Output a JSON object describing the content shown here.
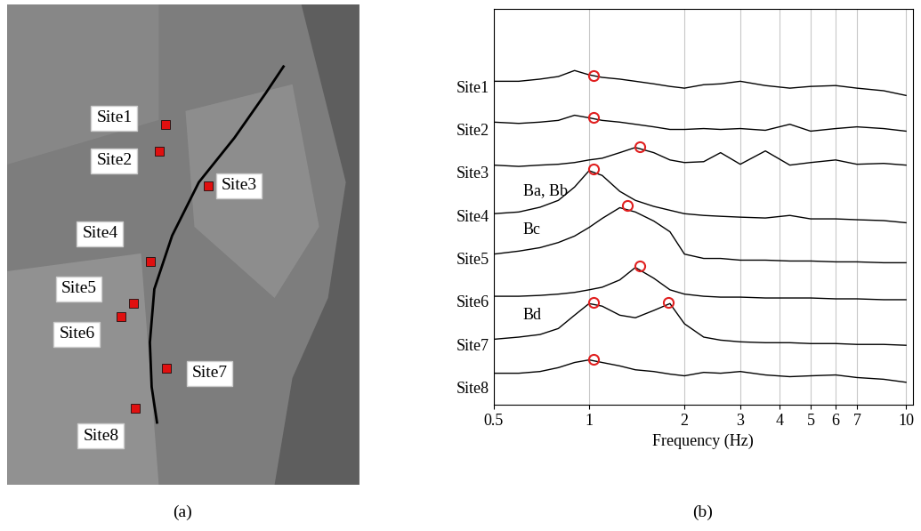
{
  "figure": {
    "panel_labels": [
      "(a)",
      "(b)"
    ]
  },
  "map": {
    "sites": [
      "Site1",
      "Site2",
      "Site3",
      "Site4",
      "Site5",
      "Site6",
      "Site7",
      "Site8"
    ]
  },
  "chart_data": {
    "type": "line",
    "xlabel": "Frequency (Hz)",
    "log": "x",
    "grid": true,
    "xlim": [
      0.5,
      10.5
    ],
    "xticks": [
      0.5,
      1,
      2,
      3,
      4,
      5,
      6,
      7,
      10
    ],
    "ylim": [
      0.6,
      9.8
    ],
    "yticks": [
      {
        "value": 8,
        "label": "Site1"
      },
      {
        "value": 7,
        "label": "Site2"
      },
      {
        "value": 6,
        "label": "Site3"
      },
      {
        "value": 5,
        "label": "Site4"
      },
      {
        "value": 4,
        "label": "Site5"
      },
      {
        "value": 3,
        "label": "Site6"
      },
      {
        "value": 2,
        "label": "Site7"
      },
      {
        "value": 1,
        "label": "Site8"
      }
    ],
    "x": [
      0.5,
      0.6,
      0.7,
      0.8,
      0.9,
      1.0,
      1.1,
      1.25,
      1.4,
      1.6,
      1.8,
      2.0,
      2.3,
      2.6,
      3.0,
      3.6,
      4.3,
      5,
      6,
      7,
      8.5,
      10
    ],
    "series": [
      {
        "name": "Site1",
        "color": "#000000",
        "values": [
          8.12,
          8.12,
          8.17,
          8.23,
          8.37,
          8.27,
          8.21,
          8.17,
          8.12,
          8.06,
          8.0,
          7.96,
          8.04,
          8.06,
          8.12,
          8.02,
          7.96,
          8.0,
          8.02,
          7.96,
          7.9,
          7.79
        ],
        "peaks": [
          {
            "x": 1.03,
            "y": 8.25
          }
        ]
      },
      {
        "name": "Site2",
        "color": "#000000",
        "values": [
          7.17,
          7.14,
          7.17,
          7.21,
          7.33,
          7.27,
          7.21,
          7.17,
          7.12,
          7.06,
          7.0,
          7.0,
          7.02,
          7.0,
          7.02,
          6.98,
          7.12,
          6.96,
          7.02,
          7.06,
          7.02,
          6.96
        ],
        "peaks": [
          {
            "x": 1.03,
            "y": 7.27
          }
        ]
      },
      {
        "name": "Site3",
        "color": "#000000",
        "values": [
          6.17,
          6.14,
          6.17,
          6.19,
          6.23,
          6.29,
          6.33,
          6.46,
          6.58,
          6.46,
          6.29,
          6.23,
          6.25,
          6.46,
          6.19,
          6.5,
          6.17,
          6.23,
          6.29,
          6.19,
          6.21,
          6.17
        ],
        "peaks": [
          {
            "x": 1.45,
            "y": 6.6
          }
        ]
      },
      {
        "name": "Site4",
        "color": "#000000",
        "values": [
          5.04,
          5.08,
          5.19,
          5.35,
          5.66,
          6.04,
          5.93,
          5.56,
          5.35,
          5.21,
          5.12,
          5.04,
          5.0,
          4.98,
          4.96,
          4.94,
          5.0,
          4.92,
          4.92,
          4.9,
          4.88,
          4.83
        ],
        "peaks": [
          {
            "x": 1.03,
            "y": 6.08
          }
        ]
      },
      {
        "name": "Site5",
        "color": "#000000",
        "values": [
          4.1,
          4.17,
          4.25,
          4.37,
          4.52,
          4.72,
          4.93,
          5.18,
          5.08,
          4.87,
          4.62,
          4.1,
          4.0,
          4.0,
          3.96,
          3.96,
          3.94,
          3.94,
          3.92,
          3.92,
          3.9,
          3.9
        ],
        "peaks": [
          {
            "x": 1.32,
            "y": 5.24
          }
        ]
      },
      {
        "name": "Site6",
        "color": "#000000",
        "values": [
          3.12,
          3.12,
          3.14,
          3.17,
          3.21,
          3.27,
          3.33,
          3.5,
          3.79,
          3.54,
          3.27,
          3.17,
          3.12,
          3.1,
          3.1,
          3.08,
          3.08,
          3.08,
          3.06,
          3.06,
          3.04,
          3.04
        ],
        "peaks": [
          {
            "x": 1.45,
            "y": 3.83
          }
        ]
      },
      {
        "name": "Site7",
        "color": "#000000",
        "values": [
          2.12,
          2.17,
          2.23,
          2.37,
          2.68,
          2.95,
          2.89,
          2.68,
          2.62,
          2.79,
          2.95,
          2.48,
          2.17,
          2.1,
          2.06,
          2.04,
          2.04,
          2.02,
          2.02,
          2.0,
          2.0,
          1.98
        ],
        "peaks": [
          {
            "x": 1.03,
            "y": 2.97
          },
          {
            "x": 1.78,
            "y": 2.97
          }
        ]
      },
      {
        "name": "Site8",
        "color": "#000000",
        "values": [
          1.33,
          1.33,
          1.37,
          1.46,
          1.58,
          1.64,
          1.58,
          1.5,
          1.41,
          1.37,
          1.31,
          1.27,
          1.35,
          1.33,
          1.37,
          1.29,
          1.25,
          1.27,
          1.29,
          1.23,
          1.19,
          1.12
        ],
        "peaks": [
          {
            "x": 1.03,
            "y": 1.66
          }
        ]
      }
    ],
    "annotations": [
      {
        "text": "Ba, Bb",
        "series": "Site4"
      },
      {
        "text": "Bc",
        "series": "Site5"
      },
      {
        "text": "Bd",
        "series": "Site7"
      }
    ]
  }
}
